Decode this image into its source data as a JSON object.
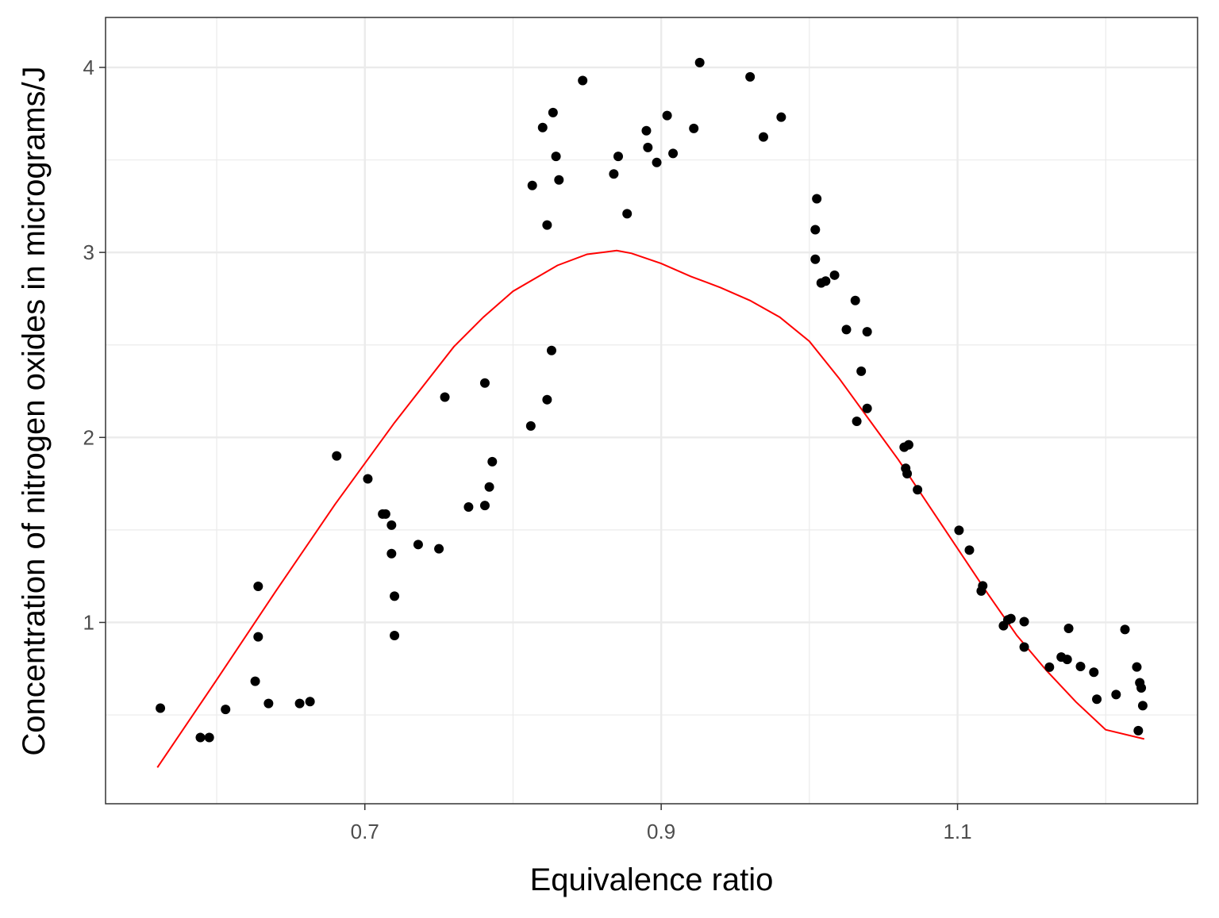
{
  "chart_data": {
    "type": "scatter",
    "title": "",
    "xlabel": "Equivalence ratio",
    "ylabel": "Concentration of nitrogen oxides in micrograms/J",
    "xlim": [
      0.525,
      1.262
    ],
    "ylim": [
      0.02,
      4.27
    ],
    "x_ticks": [
      0.7,
      0.9,
      1.1
    ],
    "x_tick_labels": [
      "0.7",
      "0.9",
      "1.1"
    ],
    "x_minor": [
      0.6,
      0.8,
      1.0,
      1.2
    ],
    "y_ticks": [
      1,
      2,
      3,
      4
    ],
    "y_tick_labels": [
      "1",
      "2",
      "3",
      "4"
    ],
    "y_minor": [
      0.5,
      1.5,
      2.5,
      3.5
    ],
    "grid": true,
    "colors": {
      "points": "#000000",
      "fit_line": "#ff0000",
      "grid": "#ebebeb",
      "border": "#333333"
    },
    "series": [
      {
        "type": "scatter",
        "points": [
          [
            0.562,
            0.537
          ],
          [
            0.589,
            0.378
          ],
          [
            0.595,
            0.378
          ],
          [
            0.606,
            0.53
          ],
          [
            0.626,
            0.682
          ],
          [
            0.628,
            1.195
          ],
          [
            0.628,
            0.922
          ],
          [
            0.635,
            0.562
          ],
          [
            0.656,
            0.562
          ],
          [
            0.663,
            0.572
          ],
          [
            0.681,
            1.9
          ],
          [
            0.702,
            1.776
          ],
          [
            0.712,
            1.586
          ],
          [
            0.714,
            1.586
          ],
          [
            0.718,
            1.526
          ],
          [
            0.718,
            1.372
          ],
          [
            0.72,
            1.142
          ],
          [
            0.72,
            0.929
          ],
          [
            0.736,
            1.421
          ],
          [
            0.75,
            1.398
          ],
          [
            0.754,
            2.218
          ],
          [
            0.77,
            1.624
          ],
          [
            0.781,
            2.294
          ],
          [
            0.781,
            1.632
          ],
          [
            0.784,
            1.732
          ],
          [
            0.786,
            1.869
          ],
          [
            0.812,
            2.062
          ],
          [
            0.813,
            3.362
          ],
          [
            0.82,
            3.675
          ],
          [
            0.823,
            3.148
          ],
          [
            0.823,
            2.204
          ],
          [
            0.826,
            2.47
          ],
          [
            0.827,
            3.756
          ],
          [
            0.829,
            3.519
          ],
          [
            0.831,
            3.392
          ],
          [
            0.847,
            3.929
          ],
          [
            0.868,
            3.424
          ],
          [
            0.871,
            3.519
          ],
          [
            0.877,
            3.209
          ],
          [
            0.89,
            3.658
          ],
          [
            0.891,
            3.567
          ],
          [
            0.897,
            3.486
          ],
          [
            0.904,
            3.74
          ],
          [
            0.908,
            3.535
          ],
          [
            0.922,
            3.67
          ],
          [
            0.926,
            4.026
          ],
          [
            0.96,
            3.949
          ],
          [
            0.969,
            3.624
          ],
          [
            0.981,
            3.731
          ],
          [
            1.005,
            3.29
          ],
          [
            1.004,
            3.123
          ],
          [
            1.004,
            2.963
          ],
          [
            1.008,
            2.835
          ],
          [
            1.011,
            2.845
          ],
          [
            1.017,
            2.877
          ],
          [
            1.025,
            2.583
          ],
          [
            1.031,
            2.74
          ],
          [
            1.032,
            2.087
          ],
          [
            1.035,
            2.358
          ],
          [
            1.039,
            2.571
          ],
          [
            1.039,
            2.157
          ],
          [
            1.064,
            1.947
          ],
          [
            1.065,
            1.833
          ],
          [
            1.066,
            1.804
          ],
          [
            1.067,
            1.96
          ],
          [
            1.073,
            1.717
          ],
          [
            1.101,
            1.498
          ],
          [
            1.108,
            1.391
          ],
          [
            1.116,
            1.17
          ],
          [
            1.117,
            1.198
          ],
          [
            1.131,
            0.982
          ],
          [
            1.134,
            1.014
          ],
          [
            1.136,
            1.021
          ],
          [
            1.145,
            1.004
          ],
          [
            1.145,
            0.867
          ],
          [
            1.162,
            0.758
          ],
          [
            1.17,
            0.813
          ],
          [
            1.174,
            0.8
          ],
          [
            1.175,
            0.968
          ],
          [
            1.183,
            0.762
          ],
          [
            1.192,
            0.731
          ],
          [
            1.194,
            0.585
          ],
          [
            1.207,
            0.61
          ],
          [
            1.213,
            0.962
          ],
          [
            1.221,
            0.759
          ],
          [
            1.222,
            0.415
          ],
          [
            1.223,
            0.674
          ],
          [
            1.224,
            0.646
          ],
          [
            1.225,
            0.55
          ]
        ]
      },
      {
        "type": "line",
        "points": [
          [
            0.56,
            0.216
          ],
          [
            0.6,
            0.69
          ],
          [
            0.64,
            1.17
          ],
          [
            0.68,
            1.64
          ],
          [
            0.72,
            2.08
          ],
          [
            0.76,
            2.49
          ],
          [
            0.78,
            2.65
          ],
          [
            0.8,
            2.79
          ],
          [
            0.83,
            2.93
          ],
          [
            0.85,
            2.99
          ],
          [
            0.87,
            3.01
          ],
          [
            0.88,
            2.995
          ],
          [
            0.9,
            2.94
          ],
          [
            0.92,
            2.87
          ],
          [
            0.94,
            2.81
          ],
          [
            0.96,
            2.74
          ],
          [
            0.98,
            2.65
          ],
          [
            1.0,
            2.52
          ],
          [
            1.02,
            2.32
          ],
          [
            1.04,
            2.1
          ],
          [
            1.06,
            1.88
          ],
          [
            1.08,
            1.64
          ],
          [
            1.1,
            1.4
          ],
          [
            1.12,
            1.16
          ],
          [
            1.14,
            0.93
          ],
          [
            1.16,
            0.74
          ],
          [
            1.18,
            0.57
          ],
          [
            1.2,
            0.42
          ],
          [
            1.226,
            0.37
          ]
        ]
      }
    ]
  }
}
